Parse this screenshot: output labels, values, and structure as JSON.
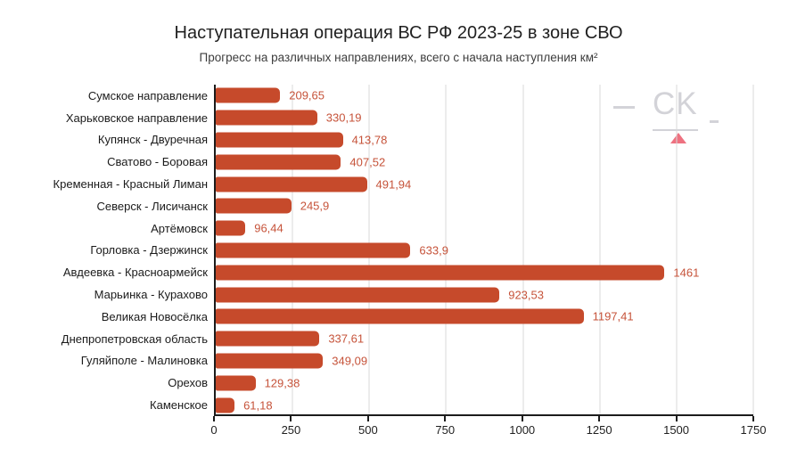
{
  "chart_data": {
    "type": "bar",
    "orientation": "horizontal",
    "title": "Наступательная операция ВС РФ 2023-25 в зоне СВО",
    "subtitle": "Прогресс на различных направлениях, всего с начала наступления км²",
    "categories": [
      "Сумское направление",
      "Харьковское направление",
      "Купянск - Двуречная",
      "Сватово - Боровая",
      "Кременная - Красный Лиман",
      "Северск - Лисичанск",
      "Артёмовск",
      "Горловка - Дзержинск",
      "Авдеевка - Красноармейск",
      "Марьинка - Курахово",
      "Великая Новосёлка",
      "Днепропетровская область",
      "Гуляйполе - Малиновка",
      "Орехов",
      "Каменское"
    ],
    "values": [
      209.65,
      330.19,
      413.78,
      407.52,
      491.94,
      245.9,
      96.44,
      633.9,
      1461,
      923.53,
      1197.41,
      337.61,
      349.09,
      129.38,
      61.18
    ],
    "value_labels": [
      "209,65",
      "330,19",
      "413,78",
      "407,52",
      "491,94",
      "245,9",
      "96,44",
      "633,9",
      "1461",
      "923,53",
      "1197,41",
      "337,61",
      "349,09",
      "129,38",
      "61,18"
    ],
    "xlim": [
      0,
      1750
    ],
    "x_ticks": [
      0,
      250,
      500,
      750,
      1000,
      1250,
      1500,
      1750
    ],
    "grid": "vertical",
    "legend": "none",
    "bar_color": "#c64a2b",
    "value_label_color": "#c6533a",
    "gridline_color": "#d9d9d9",
    "axis_color": "#1c1c1c"
  },
  "watermark": {
    "text": "CK",
    "gray_color": "#d3d3d8",
    "triangle_color": "#ee7180"
  }
}
